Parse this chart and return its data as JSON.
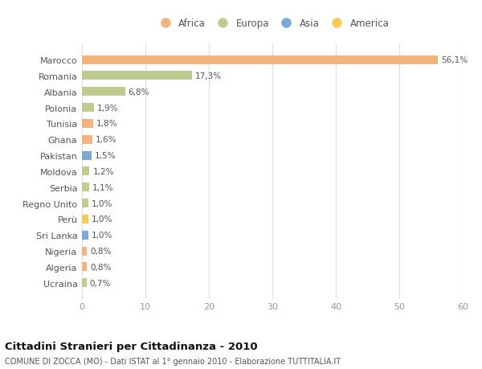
{
  "countries": [
    "Marocco",
    "Romania",
    "Albania",
    "Polonia",
    "Tunisia",
    "Ghana",
    "Pakistan",
    "Moldova",
    "Serbia",
    "Regno Unito",
    "Perù",
    "Sri Lanka",
    "Nigeria",
    "Algeria",
    "Ucraina"
  ],
  "values": [
    56.1,
    17.3,
    6.8,
    1.9,
    1.8,
    1.6,
    1.5,
    1.2,
    1.1,
    1.0,
    1.0,
    1.0,
    0.8,
    0.8,
    0.7
  ],
  "labels": [
    "56,1%",
    "17,3%",
    "6,8%",
    "1,9%",
    "1,8%",
    "1,6%",
    "1,5%",
    "1,2%",
    "1,1%",
    "1,0%",
    "1,0%",
    "1,0%",
    "0,8%",
    "0,8%",
    "0,7%"
  ],
  "continents": [
    "Africa",
    "Europa",
    "Europa",
    "Europa",
    "Africa",
    "Africa",
    "Asia",
    "Europa",
    "Europa",
    "Europa",
    "America",
    "Asia",
    "Africa",
    "Africa",
    "Europa"
  ],
  "continent_colors": {
    "Africa": "#F2B47E",
    "Europa": "#BFCC8F",
    "Asia": "#7EA8D4",
    "America": "#F5CC5A"
  },
  "legend_order": [
    "Africa",
    "Europa",
    "Asia",
    "America"
  ],
  "title": "Cittadini Stranieri per Cittadinanza - 2010",
  "subtitle": "COMUNE DI ZOCCA (MO) - Dati ISTAT al 1° gennaio 2010 - Elaborazione TUTTITALIA.IT",
  "xlim": [
    0,
    60
  ],
  "xticks": [
    0,
    10,
    20,
    30,
    40,
    50,
    60
  ],
  "background_color": "#ffffff",
  "bar_height": 0.55,
  "grid_color": "#dddddd",
  "label_color": "#555555",
  "tick_color": "#999999"
}
